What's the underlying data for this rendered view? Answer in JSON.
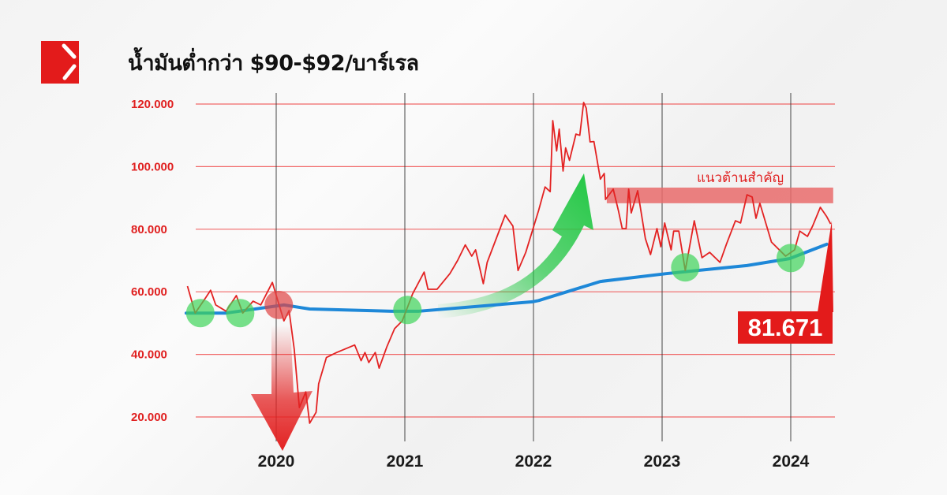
{
  "title": "น้ำมันต่ำกว่า $90-$92/บาร์เรล",
  "logo": {
    "icon": "brand-logo-icon",
    "color": "#e31b1b"
  },
  "colors": {
    "price_line": "#e32222",
    "moving_average": "#1e88d8",
    "grid": "#ef4444",
    "support_marker": "#3fd45a",
    "breakdown_marker": "#e04545",
    "resistance_band": "#e96b6b"
  },
  "chart_data": {
    "type": "line",
    "title": "น้ำมันต่ำกว่า $90-$92/บาร์เรล",
    "xlabel": "",
    "ylabel": "",
    "x_ticks": [
      "2020",
      "2021",
      "2022",
      "2023",
      "2024"
    ],
    "y_ticks": [
      "120.000",
      "100.000",
      "80.000",
      "60.000",
      "40.000",
      "20.000"
    ],
    "y_tick_values": [
      120,
      100,
      80,
      60,
      40,
      20
    ],
    "ylim": [
      15,
      123
    ],
    "xlim": [
      2019.3,
      2024.35
    ],
    "grid": {
      "horizontal": true,
      "vertical_at_years": true
    },
    "series": [
      {
        "role": "price",
        "x": [
          2019.31,
          2019.37,
          2019.45,
          2019.49,
          2019.53,
          2019.61,
          2019.69,
          2019.74,
          2019.82,
          2019.88,
          2019.97,
          2020.06,
          2020.1,
          2020.14,
          2020.18,
          2020.23,
          2020.26,
          2020.31,
          2020.33,
          2020.39,
          2020.47,
          2020.61,
          2020.66,
          2020.69,
          2020.72,
          2020.77,
          2020.8,
          2020.86,
          2020.92,
          2020.98,
          2021.06,
          2021.15,
          2021.18,
          2021.25,
          2021.35,
          2021.41,
          2021.47,
          2021.52,
          2021.55,
          2021.61,
          2021.64,
          2021.78,
          2021.84,
          2021.88,
          2021.94,
          2022.04,
          2022.09,
          2022.13,
          2022.15,
          2022.18,
          2022.2,
          2022.23,
          2022.25,
          2022.28,
          2022.33,
          2022.36,
          2022.39,
          2022.41,
          2022.44,
          2022.47,
          2022.52,
          2022.55,
          2022.56,
          2022.62,
          2022.66,
          2022.69,
          2022.72,
          2022.74,
          2022.76,
          2022.81,
          2022.87,
          2022.91,
          2022.96,
          2022.99,
          2023.02,
          2023.07,
          2023.09,
          2023.13,
          2023.18,
          2023.25,
          2023.31,
          2023.37,
          2023.45,
          2023.5,
          2023.57,
          2023.61,
          2023.66,
          2023.7,
          2023.73,
          2023.76,
          2023.85,
          2023.96,
          2024.03,
          2024.07,
          2024.13,
          2024.17,
          2024.23,
          2024.28,
          2024.31
        ],
        "values": [
          61.8,
          53.2,
          58,
          60.5,
          55.8,
          53.8,
          58.8,
          53.2,
          57,
          55.8,
          63,
          50.7,
          54,
          41.7,
          23,
          28,
          18,
          21.5,
          30.6,
          39,
          40.6,
          43,
          38,
          40.6,
          37.4,
          40.6,
          35.6,
          42.4,
          48.2,
          50.7,
          59.3,
          66.3,
          60.8,
          60.8,
          65.8,
          70,
          75,
          71.4,
          73.4,
          62.6,
          69.4,
          84.5,
          81,
          66.8,
          72.6,
          86,
          93.5,
          92,
          114.7,
          105,
          112,
          98.6,
          106,
          102,
          110.4,
          110,
          120.5,
          118.7,
          107.9,
          108,
          96,
          97.8,
          89.5,
          92.8,
          86,
          80.2,
          80.2,
          92.8,
          85.2,
          92.3,
          77,
          71.9,
          80.2,
          74.4,
          82,
          73.4,
          79.4,
          79.4,
          66.8,
          82.7,
          70.9,
          72.6,
          69.4,
          75.2,
          82.7,
          82,
          91,
          90.3,
          83.5,
          88.3,
          75.9,
          71.4,
          73.4,
          79.4,
          77.7,
          81,
          87,
          84,
          81.7
        ]
      },
      {
        "role": "moving-average",
        "x": [
          2019.3,
          2019.61,
          2020.06,
          2020.26,
          2020.9,
          2021.11,
          2021.99,
          2022.04,
          2022.26,
          2022.52,
          2023.03,
          2023.66,
          2023.99,
          2024.28
        ],
        "values": [
          53.2,
          53.2,
          55.8,
          54.5,
          53.8,
          53.8,
          56.8,
          57.2,
          60,
          63.3,
          65.8,
          68.4,
          70.6,
          75.2
        ]
      }
    ],
    "annotations": {
      "resistance_zone": {
        "label": "แนวต้านสำคัญ",
        "from": 88.3,
        "to": 93.3,
        "x_start": 2022.57,
        "x_end": 2024.33
      },
      "support_touches": [
        {
          "x": 2019.41,
          "y": 53.2
        },
        {
          "x": 2019.72,
          "y": 53.2
        },
        {
          "x": 2021.02,
          "y": 54.2
        },
        {
          "x": 2023.18,
          "y": 67.8
        },
        {
          "x": 2024.0,
          "y": 70.8
        }
      ],
      "breakdown_touch": {
        "x": 2020.02,
        "y": 55.8
      },
      "last_value": "81.671"
    }
  }
}
